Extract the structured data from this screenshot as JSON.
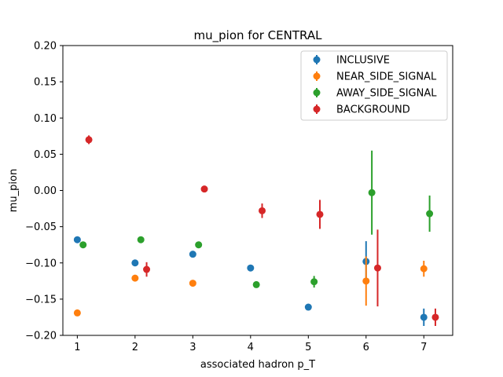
{
  "chart_data": {
    "type": "scatter",
    "title": "mu_pion for CENTRAL",
    "xlabel": "associated hadron p_T",
    "ylabel": "mu_pion",
    "xlim": [
      0.75,
      7.5
    ],
    "ylim": [
      -0.2,
      0.2
    ],
    "xticks": [
      1,
      2,
      3,
      4,
      5,
      6,
      7
    ],
    "yticks": [
      -0.2,
      -0.15,
      -0.1,
      -0.05,
      0.0,
      0.05,
      0.1,
      0.15,
      0.2
    ],
    "yticklabels": [
      "−0.20",
      "−0.15",
      "−0.10",
      "−0.05",
      "0.00",
      "0.05",
      "0.10",
      "0.15",
      "0.20"
    ],
    "legend_position": "upper-right",
    "grid": false,
    "series": [
      {
        "name": "INCLUSIVE",
        "color": "#1f77b4",
        "x": [
          1,
          2,
          3,
          4,
          5,
          6,
          7
        ],
        "y": [
          -0.068,
          -0.1,
          -0.088,
          -0.107,
          -0.161,
          -0.098,
          -0.175
        ],
        "err": [
          0.002,
          0.003,
          0.003,
          0.003,
          0.004,
          0.028,
          0.012
        ]
      },
      {
        "name": "NEAR_SIDE_SIGNAL",
        "color": "#ff7f0e",
        "x": [
          1,
          2,
          3,
          4,
          5,
          6,
          7
        ],
        "y": [
          -0.169,
          -0.121,
          -0.128,
          null,
          null,
          -0.125,
          -0.108
        ],
        "err": [
          0.002,
          0.003,
          0.003,
          null,
          null,
          0.034,
          0.011
        ]
      },
      {
        "name": "AWAY_SIDE_SIGNAL",
        "color": "#2ca02c",
        "x": [
          1.1,
          2.1,
          3.1,
          4.1,
          5.1,
          6.1,
          7.1
        ],
        "y": [
          -0.075,
          -0.068,
          -0.075,
          -0.13,
          -0.126,
          -0.003,
          -0.032
        ],
        "err": [
          0.002,
          0.003,
          0.003,
          0.004,
          0.008,
          0.058,
          0.025
        ]
      },
      {
        "name": "BACKGROUND",
        "color": "#d62728",
        "x": [
          1.2,
          2.2,
          3.2,
          4.2,
          5.2,
          6.2,
          7.2
        ],
        "y": [
          0.07,
          -0.109,
          0.002,
          -0.028,
          -0.033,
          -0.107,
          -0.175
        ],
        "err": [
          0.006,
          0.01,
          0.003,
          0.01,
          0.02,
          0.053,
          0.012
        ]
      }
    ]
  }
}
